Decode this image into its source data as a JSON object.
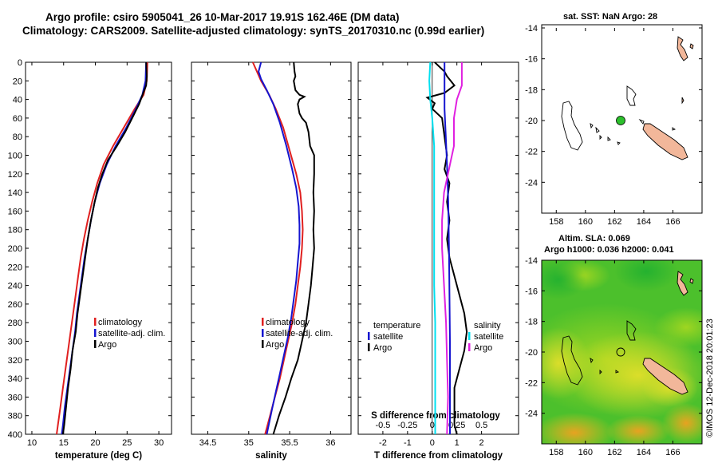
{
  "figure": {
    "title_line1": "Argo profile: csiro 5905041_26 10-Mar-2017 19.91S 162.46E (DM data)",
    "title_line2": "Climatology: CARS2009. Satellite-adjusted climatology: synTS_20170310.nc (0.99d earlier)",
    "side_label": "©IMOS 12-Dec-2018 20:01:23"
  },
  "colors": {
    "climatology": "#e02020",
    "satellite": "#1515d0",
    "argo": "#000000",
    "t_sat": "#00e0f0",
    "s_sat": "#e020e0",
    "land": "#f2b79a"
  },
  "chart_data": [
    {
      "id": "temperature",
      "type": "line",
      "xlabel": "temperature (deg C)",
      "ylabel": "depth",
      "xlim": [
        9,
        32
      ],
      "ylim": [
        400,
        0
      ],
      "xticks": [
        10,
        15,
        20,
        25,
        30
      ],
      "xtick_labels": [
        "10",
        "15",
        "20",
        "25",
        "30"
      ],
      "yticks": [
        0,
        20,
        40,
        60,
        80,
        100,
        120,
        140,
        160,
        180,
        200,
        220,
        240,
        260,
        280,
        300,
        320,
        340,
        360,
        380,
        400
      ],
      "legend": [
        "climatology",
        "satellite-adj. clim.",
        "Argo"
      ],
      "series": [
        {
          "name": "climatology",
          "color": "climatology",
          "points": [
            [
              28.2,
              0
            ],
            [
              28.1,
              20
            ],
            [
              27.6,
              35
            ],
            [
              26.2,
              50
            ],
            [
              24.5,
              70
            ],
            [
              22.8,
              90
            ],
            [
              21.3,
              110
            ],
            [
              20.3,
              130
            ],
            [
              19.5,
              150
            ],
            [
              18.8,
              170
            ],
            [
              18.2,
              190
            ],
            [
              17.7,
              210
            ],
            [
              17.3,
              230
            ],
            [
              16.9,
              250
            ],
            [
              16.5,
              270
            ],
            [
              16.1,
              290
            ],
            [
              15.7,
              310
            ],
            [
              15.3,
              330
            ],
            [
              14.9,
              350
            ],
            [
              14.5,
              370
            ],
            [
              14.1,
              390
            ],
            [
              13.9,
              400
            ]
          ]
        },
        {
          "name": "satellite-adj. clim.",
          "color": "satellite",
          "points": [
            [
              28.0,
              0
            ],
            [
              27.9,
              20
            ],
            [
              27.4,
              35
            ],
            [
              26.4,
              50
            ],
            [
              24.9,
              70
            ],
            [
              23.2,
              90
            ],
            [
              21.8,
              110
            ],
            [
              20.7,
              130
            ],
            [
              19.9,
              150
            ],
            [
              19.3,
              170
            ],
            [
              18.8,
              190
            ],
            [
              18.3,
              210
            ],
            [
              17.9,
              230
            ],
            [
              17.5,
              250
            ],
            [
              17.1,
              270
            ],
            [
              16.8,
              290
            ],
            [
              16.4,
              310
            ],
            [
              16.0,
              330
            ],
            [
              15.6,
              350
            ],
            [
              15.2,
              370
            ],
            [
              14.9,
              390
            ],
            [
              14.7,
              400
            ]
          ]
        },
        {
          "name": "Argo",
          "color": "argo",
          "points": [
            [
              28.0,
              0
            ],
            [
              28.1,
              15
            ],
            [
              28.0,
              25
            ],
            [
              27.6,
              32
            ],
            [
              26.9,
              45
            ],
            [
              25.8,
              60
            ],
            [
              24.7,
              75
            ],
            [
              23.4,
              90
            ],
            [
              22.0,
              105
            ],
            [
              21.1,
              120
            ],
            [
              20.4,
              135
            ],
            [
              19.9,
              150
            ],
            [
              19.3,
              170
            ],
            [
              18.8,
              190
            ],
            [
              18.4,
              210
            ],
            [
              18.0,
              230
            ],
            [
              17.6,
              250
            ],
            [
              17.2,
              270
            ],
            [
              16.9,
              290
            ],
            [
              16.4,
              310
            ],
            [
              16.1,
              330
            ],
            [
              15.7,
              350
            ],
            [
              15.4,
              370
            ],
            [
              15.1,
              390
            ],
            [
              14.9,
              400
            ]
          ]
        }
      ]
    },
    {
      "id": "salinity",
      "type": "line",
      "xlabel": "salinity",
      "ylabel": "depth",
      "xlim": [
        34.3,
        36.25
      ],
      "ylim": [
        400,
        0
      ],
      "xticks": [
        34.5,
        35,
        35.5,
        36
      ],
      "xtick_labels": [
        "34.5",
        "35",
        "35.5",
        "36"
      ],
      "yticks": [
        0,
        20,
        40,
        60,
        80,
        100,
        120,
        140,
        160,
        180,
        200,
        220,
        240,
        260,
        280,
        300,
        320,
        340,
        360,
        380,
        400
      ],
      "legend": [
        "climatology",
        "satellite-adj. clim.",
        "Argo"
      ],
      "series": [
        {
          "name": "climatology",
          "color": "climatology",
          "points": [
            [
              35.05,
              0
            ],
            [
              35.1,
              10
            ],
            [
              35.15,
              20
            ],
            [
              35.25,
              35
            ],
            [
              35.33,
              50
            ],
            [
              35.42,
              70
            ],
            [
              35.5,
              95
            ],
            [
              35.58,
              120
            ],
            [
              35.63,
              140
            ],
            [
              35.65,
              160
            ],
            [
              35.66,
              180
            ],
            [
              35.65,
              200
            ],
            [
              35.63,
              220
            ],
            [
              35.6,
              240
            ],
            [
              35.57,
              260
            ],
            [
              35.53,
              280
            ],
            [
              35.48,
              300
            ],
            [
              35.43,
              320
            ],
            [
              35.38,
              340
            ],
            [
              35.32,
              360
            ],
            [
              35.26,
              380
            ],
            [
              35.2,
              400
            ]
          ]
        },
        {
          "name": "satellite-adj. clim.",
          "color": "satellite",
          "points": [
            [
              35.15,
              0
            ],
            [
              35.12,
              10
            ],
            [
              35.15,
              18
            ],
            [
              35.22,
              30
            ],
            [
              35.3,
              45
            ],
            [
              35.38,
              65
            ],
            [
              35.46,
              90
            ],
            [
              35.53,
              115
            ],
            [
              35.58,
              135
            ],
            [
              35.61,
              155
            ],
            [
              35.62,
              175
            ],
            [
              35.62,
              195
            ],
            [
              35.6,
              215
            ],
            [
              35.58,
              235
            ],
            [
              35.55,
              255
            ],
            [
              35.52,
              275
            ],
            [
              35.48,
              295
            ],
            [
              35.43,
              315
            ],
            [
              35.38,
              335
            ],
            [
              35.33,
              355
            ],
            [
              35.28,
              375
            ],
            [
              35.22,
              400
            ]
          ]
        },
        {
          "name": "Argo",
          "color": "argo",
          "points": [
            [
              35.55,
              0
            ],
            [
              35.56,
              10
            ],
            [
              35.57,
              15
            ],
            [
              35.55,
              20
            ],
            [
              35.57,
              30
            ],
            [
              35.62,
              35
            ],
            [
              35.68,
              37
            ],
            [
              35.62,
              40
            ],
            [
              35.6,
              45
            ],
            [
              35.62,
              55
            ],
            [
              35.65,
              60
            ],
            [
              35.7,
              65
            ],
            [
              35.73,
              75
            ],
            [
              35.75,
              90
            ],
            [
              35.8,
              100
            ],
            [
              35.8,
              120
            ],
            [
              35.79,
              140
            ],
            [
              35.8,
              160
            ],
            [
              35.79,
              180
            ],
            [
              35.8,
              200
            ],
            [
              35.78,
              220
            ],
            [
              35.76,
              240
            ],
            [
              35.73,
              260
            ],
            [
              35.7,
              280
            ],
            [
              35.65,
              300
            ],
            [
              35.6,
              320
            ],
            [
              35.52,
              340
            ],
            [
              35.45,
              360
            ],
            [
              35.37,
              380
            ],
            [
              35.3,
              400
            ]
          ]
        }
      ]
    },
    {
      "id": "difference",
      "type": "line",
      "xlabel": "T difference from climatology",
      "x2label": "S difference from climatology",
      "ylabel": "depth",
      "xlim": [
        -3,
        3.5
      ],
      "ylim": [
        400,
        0
      ],
      "xticks": [
        -2,
        -1,
        0,
        1,
        2
      ],
      "xtick_labels": [
        "-2",
        "-1",
        "0",
        "1",
        "2"
      ],
      "x2ticks": [
        -0.5,
        -0.25,
        0,
        0.25,
        0.5
      ],
      "x2tick_labels": [
        "-0.5",
        "-0.25",
        "0",
        "0.25",
        "0.5"
      ],
      "x2_scale": 4,
      "yticks": [
        0,
        20,
        40,
        60,
        80,
        100,
        120,
        140,
        160,
        180,
        200,
        220,
        240,
        260,
        280,
        300,
        320,
        340,
        360,
        380,
        400
      ],
      "legend_left_title": "temperature",
      "legend_right_title": "salinity",
      "legend_left": [
        "satellite",
        "Argo"
      ],
      "legend_right": [
        "satellite",
        "Argo"
      ],
      "series": [
        {
          "name": "T Argo - clim",
          "color": "argo",
          "axis": "T",
          "points": [
            [
              0.1,
              0
            ],
            [
              0.5,
              10
            ],
            [
              0.6,
              15
            ],
            [
              0.9,
              25
            ],
            [
              0.5,
              33
            ],
            [
              -0.2,
              38
            ],
            [
              0.1,
              44
            ],
            [
              0.0,
              50
            ],
            [
              0.4,
              60
            ],
            [
              0.5,
              80
            ],
            [
              0.6,
              100
            ],
            [
              0.5,
              115
            ],
            [
              0.7,
              130
            ],
            [
              0.6,
              150
            ],
            [
              0.7,
              170
            ],
            [
              0.6,
              190
            ],
            [
              0.7,
              210
            ],
            [
              0.9,
              230
            ],
            [
              1.1,
              250
            ],
            [
              1.3,
              270
            ],
            [
              1.4,
              290
            ],
            [
              1.3,
              310
            ],
            [
              1.1,
              330
            ],
            [
              0.9,
              350
            ],
            [
              0.9,
              370
            ],
            [
              0.9,
              390
            ],
            [
              1.0,
              400
            ]
          ]
        },
        {
          "name": "T sat - clim",
          "color": "satellite",
          "axis": "T",
          "points": [
            [
              0.5,
              0
            ],
            [
              0.5,
              30
            ],
            [
              0.5,
              50
            ],
            [
              0.55,
              80
            ],
            [
              0.6,
              110
            ],
            [
              0.65,
              150
            ],
            [
              0.68,
              200
            ],
            [
              0.7,
              250
            ],
            [
              0.72,
              300
            ],
            [
              0.72,
              350
            ],
            [
              0.72,
              400
            ]
          ]
        },
        {
          "name": "S sat - clim",
          "color": "t_sat",
          "axis": "S",
          "points": [
            [
              -0.02,
              0
            ],
            [
              -0.03,
              20
            ],
            [
              -0.02,
              40
            ],
            [
              0.0,
              60
            ],
            [
              0.02,
              90
            ],
            [
              0.02,
              120
            ],
            [
              0.02,
              160
            ],
            [
              0.02,
              200
            ],
            [
              0.02,
              240
            ],
            [
              0.03,
              280
            ],
            [
              0.03,
              320
            ],
            [
              0.03,
              360
            ],
            [
              0.03,
              400
            ]
          ]
        },
        {
          "name": "S Argo - clim",
          "color": "s_sat",
          "axis": "S",
          "points": [
            [
              0.3,
              0
            ],
            [
              0.3,
              25
            ],
            [
              0.25,
              40
            ],
            [
              0.22,
              60
            ],
            [
              0.22,
              90
            ],
            [
              0.18,
              110
            ],
            [
              0.12,
              140
            ],
            [
              0.1,
              170
            ],
            [
              0.1,
              200
            ],
            [
              0.12,
              240
            ],
            [
              0.14,
              280
            ],
            [
              0.15,
              320
            ],
            [
              0.16,
              360
            ],
            [
              0.15,
              400
            ]
          ]
        }
      ]
    },
    {
      "id": "sst_map",
      "type": "map",
      "title": "sat. SST: NaN Argo: 28",
      "lon_range": [
        157,
        168
      ],
      "lat_range": [
        -26,
        -14
      ],
      "xticks": [
        158,
        160,
        162,
        164,
        166
      ],
      "yticks": [
        -14,
        -16,
        -18,
        -20,
        -22,
        -24
      ],
      "argo_position": {
        "lon": 162.46,
        "lat": -19.91
      }
    },
    {
      "id": "sla_map",
      "type": "map",
      "title_line1": "Altim. SLA: 0.069",
      "title_line2": "Argo h1000: 0.036 h2000: 0.041",
      "lon_range": [
        157,
        168
      ],
      "lat_range": [
        -26,
        -14
      ],
      "xticks": [
        158,
        160,
        162,
        164,
        166
      ],
      "yticks": [
        -14,
        -16,
        -18,
        -20,
        -22,
        -24
      ],
      "argo_position": {
        "lon": 162.46,
        "lat": -19.91
      }
    }
  ]
}
